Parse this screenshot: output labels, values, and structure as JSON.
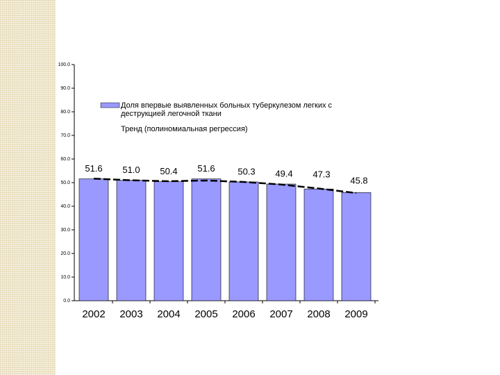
{
  "chart_data": {
    "type": "bar",
    "categories": [
      "2002",
      "2003",
      "2004",
      "2005",
      "2006",
      "2007",
      "2008",
      "2009"
    ],
    "series": [
      {
        "name": "Доля впервые выявленных больных туберкулезом легких с деструкцией легочной ткани",
        "color": "#9999ff",
        "values": [
          51.6,
          51.0,
          50.4,
          51.6,
          50.3,
          49.4,
          47.3,
          45.8
        ],
        "value_labels": [
          "51.6",
          "51.0",
          "50.4",
          "51.6",
          "50.3",
          "49.4",
          "47.3",
          "45.8"
        ]
      },
      {
        "name": "Тренд (полиномиальная регрессия)",
        "color": "#000000",
        "values": [
          51.7,
          51.0,
          50.6,
          50.9,
          50.3,
          49.2,
          47.5,
          45.6
        ]
      }
    ],
    "ylim": [
      0,
      100
    ],
    "yticks": [
      {
        "value": 0,
        "label": "0.0"
      },
      {
        "value": 10,
        "label": "10.0"
      },
      {
        "value": 20,
        "label": "20.0"
      },
      {
        "value": 30,
        "label": "30.0"
      },
      {
        "value": 40,
        "label": "40.0"
      },
      {
        "value": 50,
        "label": "50.0"
      },
      {
        "value": 60,
        "label": "60.0"
      },
      {
        "value": 70,
        "label": "70.0"
      },
      {
        "value": 80,
        "label": "80.0"
      },
      {
        "value": 90,
        "label": "90.0"
      },
      {
        "value": 100,
        "label": "100.0"
      }
    ]
  }
}
